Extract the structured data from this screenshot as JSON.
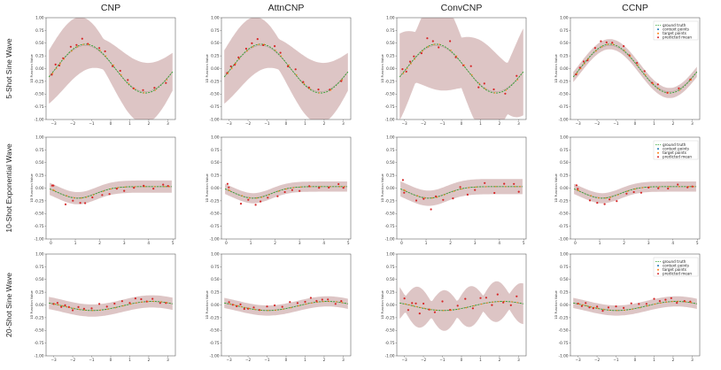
{
  "chart_data": {
    "type": "line",
    "columns": [
      "CNP",
      "AttnCNP",
      "ConvCNP",
      "CCNP"
    ],
    "rows": [
      {
        "title": "5-Shot Sine Wave",
        "kind": "sine",
        "xlim": [
          -3.4,
          3.4
        ],
        "xticks": [
          -3,
          -2,
          -1,
          0,
          1,
          2,
          3
        ],
        "points": [
          [
            -3.1,
            -0.12
          ],
          [
            -2.9,
            0.05
          ],
          [
            -2.7,
            0.1
          ],
          [
            -2.5,
            0.18
          ],
          [
            -2.1,
            0.42
          ],
          [
            -1.8,
            0.5
          ],
          [
            -1.5,
            0.55
          ],
          [
            -1.2,
            0.5
          ],
          [
            -0.6,
            0.42
          ],
          [
            -0.3,
            0.3
          ],
          [
            0.1,
            0.08
          ],
          [
            0.5,
            -0.05
          ],
          [
            0.9,
            -0.25
          ],
          [
            1.2,
            -0.35
          ],
          [
            1.7,
            -0.45
          ],
          [
            2.3,
            -0.38
          ],
          [
            2.9,
            -0.25
          ]
        ]
      },
      {
        "title": "10-Shot Exponential Wave",
        "kind": "exp",
        "xlim": [
          -0.2,
          5.1
        ],
        "xticks": [
          0,
          1,
          2,
          3,
          4,
          5
        ],
        "points": [
          [
            0.05,
            0.05
          ],
          [
            0.1,
            0.02
          ],
          [
            0.6,
            -0.28
          ],
          [
            0.9,
            -0.27
          ],
          [
            1.2,
            -0.3
          ],
          [
            1.4,
            -0.26
          ],
          [
            1.7,
            -0.22
          ],
          [
            2.1,
            -0.12
          ],
          [
            2.4,
            -0.1
          ],
          [
            2.7,
            -0.05
          ],
          [
            3.0,
            -0.02
          ],
          [
            3.4,
            0.0
          ],
          [
            3.8,
            0.02
          ],
          [
            4.2,
            0.03
          ],
          [
            4.6,
            0.04
          ],
          [
            4.8,
            0.04
          ]
        ]
      },
      {
        "title": "20-Shot Sine Wave",
        "kind": "sine20",
        "xlim": [
          -3.4,
          3.4
        ],
        "xticks": [
          -3,
          -2,
          -1,
          0,
          1,
          2,
          3
        ],
        "points": [
          [
            -3.0,
            0.02
          ],
          [
            -2.8,
            0.01
          ],
          [
            -2.6,
            0.0
          ],
          [
            -2.4,
            -0.03
          ],
          [
            -2.2,
            -0.05
          ],
          [
            -2.0,
            -0.07
          ],
          [
            -1.7,
            -0.08
          ],
          [
            -1.4,
            -0.06
          ],
          [
            -1.0,
            -0.05
          ],
          [
            -0.6,
            -0.02
          ],
          [
            -0.2,
            0.0
          ],
          [
            0.2,
            0.02
          ],
          [
            0.6,
            0.05
          ],
          [
            1.0,
            0.08
          ],
          [
            1.3,
            0.1
          ],
          [
            1.6,
            0.11
          ],
          [
            1.9,
            0.1
          ],
          [
            2.2,
            0.08
          ],
          [
            2.6,
            0.06
          ],
          [
            2.9,
            0.05
          ]
        ]
      }
    ],
    "ylim": [
      -1.0,
      1.0
    ],
    "yticks": [
      "1.00",
      "0.75",
      "0.50",
      "0.25",
      "0.00",
      "-0.25",
      "-0.50",
      "-0.75",
      "-1.00"
    ],
    "ylabel": "1D Function Value",
    "legend": [
      "ground truth",
      "context points",
      "target points",
      "predicted mean"
    ],
    "legend_position": "top-right",
    "band_width": [
      [
        0.5,
        0.5,
        0.9,
        0.1
      ],
      [
        0.12,
        0.1,
        0.15,
        0.1
      ],
      [
        0.12,
        0.1,
        0.3,
        0.1
      ]
    ]
  },
  "colors": {
    "ground_truth": "#2ca02c",
    "context_points": "#1f77b4",
    "target_points": "#ff7f0e",
    "predicted_mean": "#d62728",
    "band": "#d4b6b6"
  }
}
